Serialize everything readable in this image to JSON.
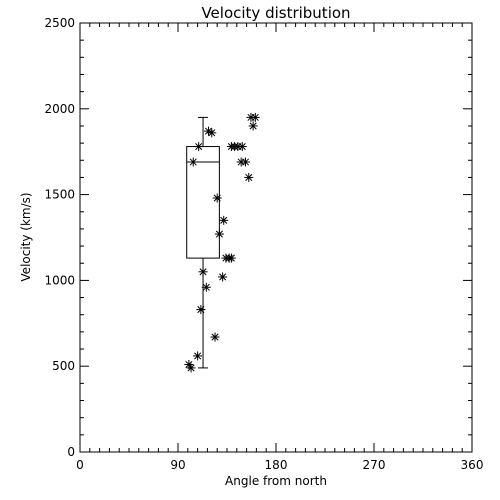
{
  "chart_data": {
    "type": "scatter",
    "title": "Velocity distribution",
    "xlabel": "Angle from north",
    "ylabel": "Velocity (km/s)",
    "xlim": [
      0,
      360
    ],
    "ylim": [
      0,
      2500
    ],
    "x_ticks": [
      0,
      90,
      180,
      270,
      360
    ],
    "x_tick_labels": [
      "0",
      "90",
      "180",
      "270",
      "360"
    ],
    "y_ticks": [
      0,
      500,
      1000,
      1500,
      2000,
      2500
    ],
    "y_tick_labels": [
      "0",
      "500",
      "1000",
      "1500",
      "2000",
      "2500"
    ],
    "grid": false,
    "marker": "asterisk",
    "color": "#000000",
    "points": [
      {
        "x": 100,
        "y": 510
      },
      {
        "x": 102,
        "y": 490
      },
      {
        "x": 108,
        "y": 560
      },
      {
        "x": 124,
        "y": 670
      },
      {
        "x": 111,
        "y": 830
      },
      {
        "x": 116,
        "y": 960
      },
      {
        "x": 113,
        "y": 1050
      },
      {
        "x": 131,
        "y": 1020
      },
      {
        "x": 134,
        "y": 1130
      },
      {
        "x": 137,
        "y": 1130
      },
      {
        "x": 139,
        "y": 1130
      },
      {
        "x": 128,
        "y": 1270
      },
      {
        "x": 132,
        "y": 1350
      },
      {
        "x": 126,
        "y": 1480
      },
      {
        "x": 104,
        "y": 1690
      },
      {
        "x": 109,
        "y": 1780
      },
      {
        "x": 121,
        "y": 1860
      },
      {
        "x": 118,
        "y": 1870
      },
      {
        "x": 139,
        "y": 1780
      },
      {
        "x": 142,
        "y": 1780
      },
      {
        "x": 145,
        "y": 1780
      },
      {
        "x": 149,
        "y": 1780
      },
      {
        "x": 148,
        "y": 1690
      },
      {
        "x": 152,
        "y": 1690
      },
      {
        "x": 155,
        "y": 1600
      },
      {
        "x": 159,
        "y": 1900
      },
      {
        "x": 157,
        "y": 1950
      },
      {
        "x": 161,
        "y": 1950
      }
    ],
    "boxplot": {
      "box_x_range": [
        98,
        128
      ],
      "whisker_x": 113,
      "whisker_low": 490,
      "q1": 1130,
      "median": 1690,
      "q3": 1780,
      "whisker_high": 1950
    }
  }
}
